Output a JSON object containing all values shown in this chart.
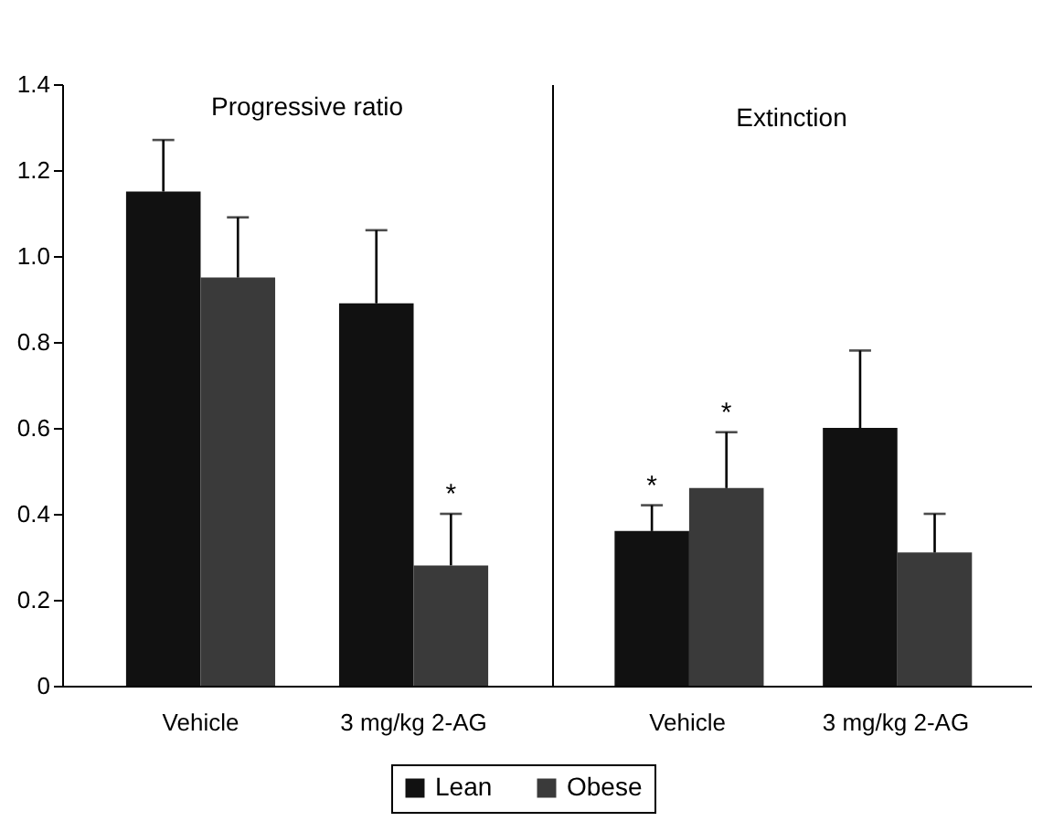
{
  "chart_data": [
    {
      "type": "bar",
      "title": "Progressive ratio",
      "categories": [
        "Vehicle",
        "3 mg/kg 2-AG"
      ],
      "series": [
        {
          "name": "Lean",
          "color": "#111111",
          "values": [
            1.15,
            0.89
          ],
          "errors": [
            [
              1.15,
              1.27
            ],
            [
              0.89,
              1.06
            ]
          ]
        },
        {
          "name": "Obese",
          "color": "#3a3a3a",
          "values": [
            0.95,
            0.28
          ],
          "errors": [
            [
              0.95,
              1.09
            ],
            [
              0.28,
              0.4
            ]
          ]
        }
      ],
      "ylim": [
        0,
        1.4
      ],
      "yticks": [
        0,
        0.2,
        0.4,
        0.6,
        0.8,
        {
          "value": 1,
          "label": "1.0"
        },
        1.2,
        1.4
      ],
      "annotations": [
        {
          "text": "*",
          "x": "3 mg/kg 2-AG",
          "y": 0.4
        }
      ],
      "legend": "bottom",
      "grid": false
    },
    {
      "type": "bar",
      "title": "Extinction",
      "categories": [
        "Vehicle",
        "3 mg/kg 2-AG"
      ],
      "series": [
        {
          "name": "Lean",
          "color": "#111111",
          "values": [
            0.36,
            0.6
          ],
          "errors": [
            [
              0.36,
              0.42
            ],
            [
              0.6,
              0.78
            ]
          ]
        },
        {
          "name": "Obese",
          "color": "#3a3a3a",
          "values": [
            0.46,
            0.31
          ],
          "errors": [
            [
              0.46,
              0.59
            ],
            [
              0.31,
              0.4
            ]
          ]
        }
      ],
      "ylim": [
        0,
        1.4
      ],
      "annotations": [
        {
          "text": "*",
          "x": "Vehicle",
          "y": 0.42
        },
        {
          "text": "*",
          "x": "Vehicle",
          "y": 0.46
        }
      ],
      "legend": "bottom",
      "grid": false,
      "tick_labels": "x"
    }
  ]
}
